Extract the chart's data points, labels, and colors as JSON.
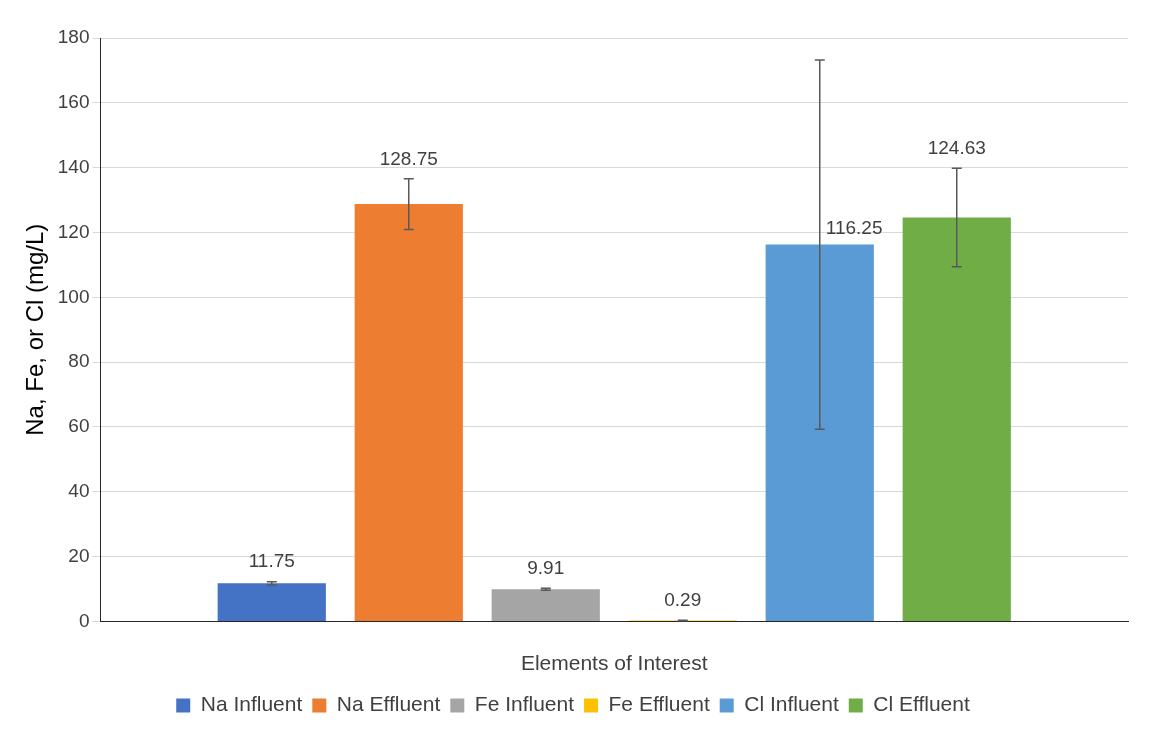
{
  "chart_data": {
    "type": "bar",
    "xlabel": "Elements of Interest",
    "ylabel": "Na, Fe, or Cl (mg/L)",
    "categories": [
      null
    ],
    "series": [
      {
        "name": "Na Influent",
        "color": "#4472c4",
        "values": [
          11.75
        ],
        "errors": [
          0.5
        ]
      },
      {
        "name": "Na Effluent",
        "color": "#ed7d31",
        "values": [
          128.75
        ],
        "errors": [
          7.8
        ]
      },
      {
        "name": "Fe Influent",
        "color": "#a5a5a5",
        "values": [
          9.91
        ],
        "errors": [
          0.3
        ]
      },
      {
        "name": "Fe Effluent",
        "color": "#ffc000",
        "values": [
          0.29
        ],
        "errors": [
          0.1
        ]
      },
      {
        "name": "Cl Influent",
        "color": "#5b9bd5",
        "values": [
          116.25
        ],
        "errors": [
          57
        ]
      },
      {
        "name": "Cl Effluent",
        "color": "#70ad47",
        "values": [
          124.63
        ],
        "errors": [
          15.2
        ]
      }
    ],
    "ylim": [
      0,
      180
    ],
    "yticks": [
      0,
      20,
      40,
      60,
      80,
      100,
      120,
      140,
      160,
      180
    ],
    "grid": "y",
    "legend": "bottom",
    "data_labels": true
  }
}
